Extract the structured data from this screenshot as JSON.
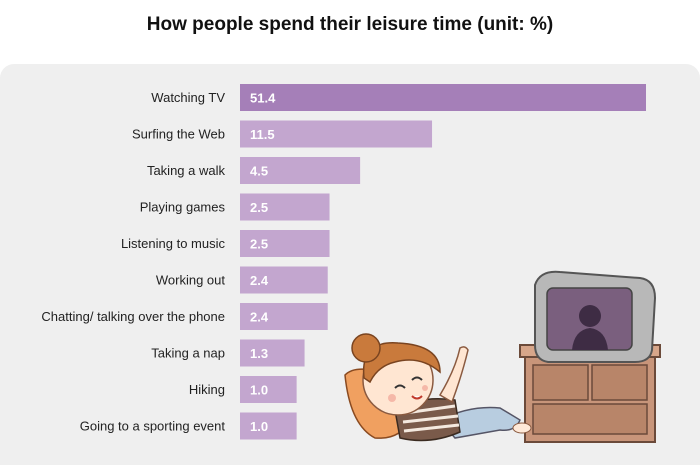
{
  "chart_data": {
    "type": "bar",
    "orientation": "horizontal",
    "title": "How people spend their leisure time (unit: %)",
    "xlabel": "",
    "ylabel": "",
    "categories": [
      "Watching TV",
      "Surfing the Web",
      "Taking a walk",
      "Playing games",
      "Listening to music",
      "Working out",
      "Chatting/ talking over the phone",
      "Taking a nap",
      "Hiking",
      "Going to a sporting event"
    ],
    "values": [
      51.4,
      11.5,
      4.5,
      2.5,
      2.5,
      2.4,
      2.4,
      1.3,
      1.0,
      1.0
    ],
    "value_labels": [
      "51.4",
      "11.5",
      "4.5",
      "2.5",
      "2.5",
      "2.4",
      "2.4",
      "1.3",
      "1.0",
      "1.0"
    ],
    "grid": false,
    "legend": "none"
  },
  "colors": {
    "bar_highlight": "#a57fb8",
    "bar": "#c3a6cf",
    "panel_background": "#efefef",
    "label_inside": "#ffffff",
    "label_outside": "#111111"
  },
  "illustration": "girl-lying-watching-tv-illustration"
}
